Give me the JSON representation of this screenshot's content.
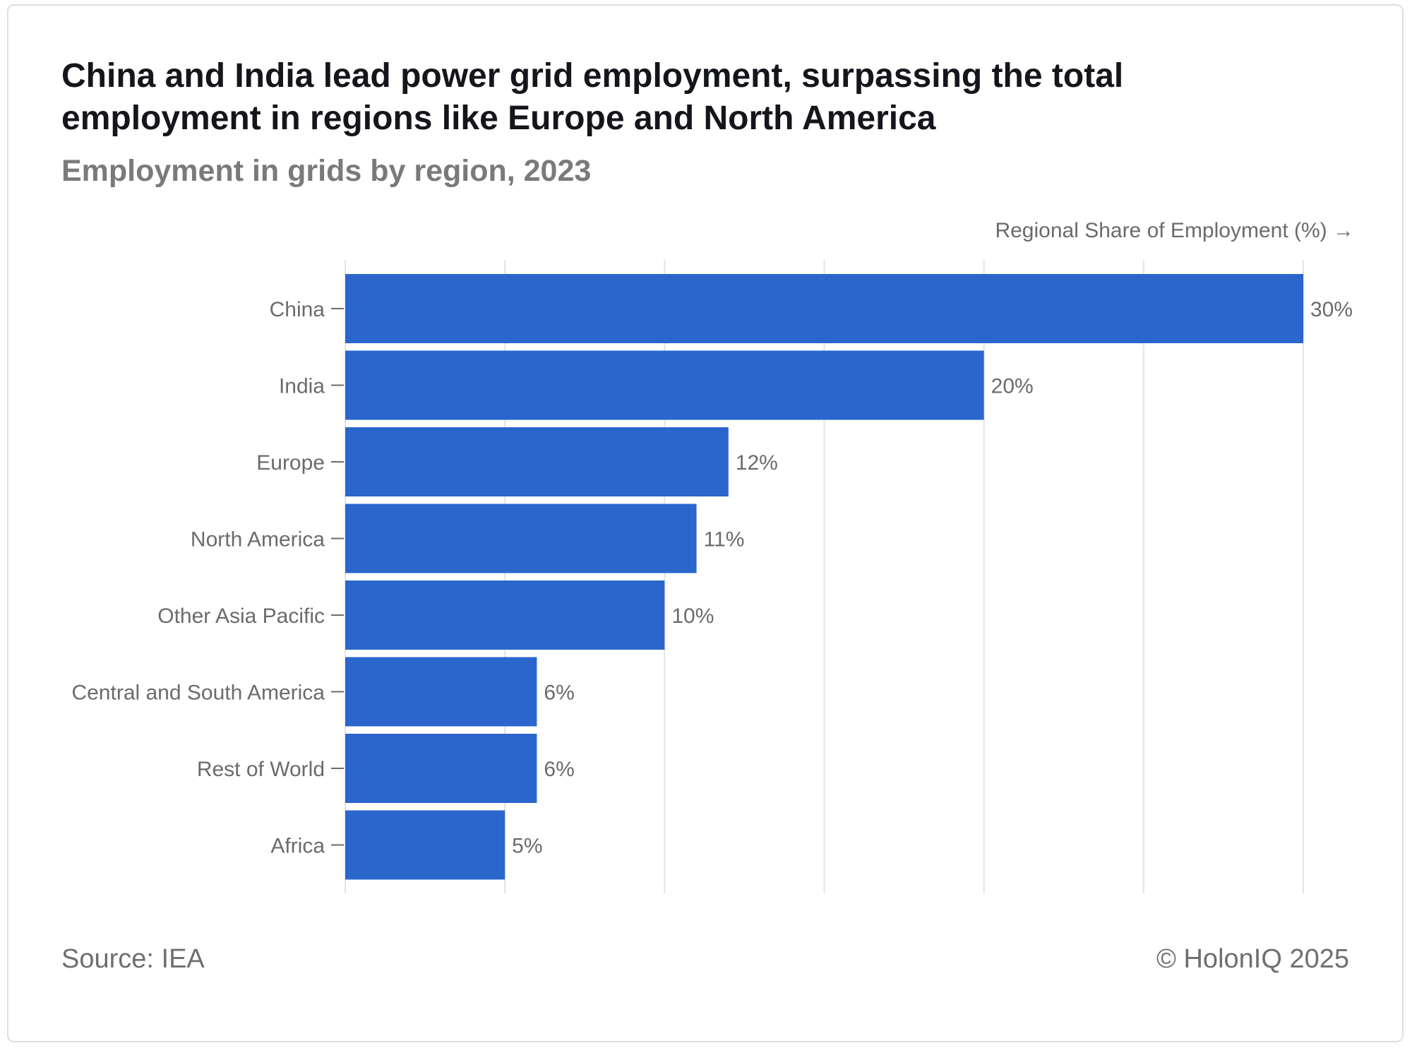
{
  "title": "China and India lead power grid employment, surpassing the total employment in regions like Europe and North America",
  "subtitle": "Employment in grids by region, 2023",
  "source": "Source: IEA",
  "copyright": "© HolonIQ 2025",
  "colors": {
    "bar": "#2a66cc",
    "grid": "#e4e4e4",
    "text_muted": "#6b6b6b"
  },
  "chart_data": {
    "type": "bar",
    "orientation": "horizontal",
    "title": "China and India lead power grid employment, surpassing the total employment in regions like Europe and North America",
    "subtitle": "Employment in grids by region, 2023",
    "xlabel": "Regional Share of Employment (%) →",
    "ylabel": "",
    "categories": [
      "China",
      "India",
      "Europe",
      "North America",
      "Other Asia Pacific",
      "Central and South America",
      "Rest of World",
      "Africa"
    ],
    "values": [
      30,
      20,
      12,
      11,
      10,
      6,
      6,
      5
    ],
    "value_labels": [
      "30%",
      "20%",
      "12%",
      "11%",
      "10%",
      "6%",
      "6%",
      "5%"
    ],
    "xlim": [
      0,
      30
    ],
    "gridlines_at": [
      0,
      5,
      10,
      15,
      20,
      25,
      30
    ],
    "grid": true,
    "legend": "none"
  }
}
